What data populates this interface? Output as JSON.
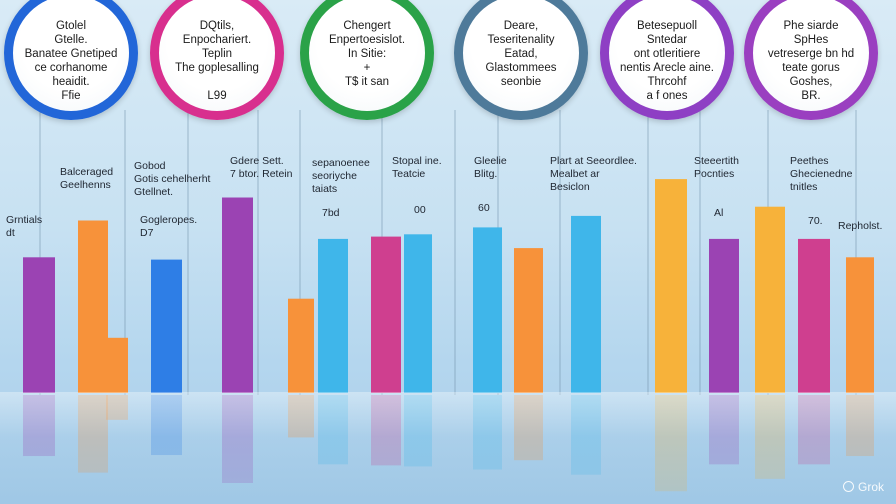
{
  "colors": {
    "purple": "#9b43b3",
    "orange": "#f7923a",
    "blue": "#2e7ee6",
    "magenta": "#cf3f8f",
    "sky": "#3fb6ea",
    "amber": "#f7b23a",
    "ring_blue": "#2266d8",
    "ring_magenta": "#d82f8e",
    "ring_green": "#2aa248",
    "ring_slate": "#4e7a9a",
    "ring_purple": "#8e3fc4",
    "ring_violet": "#9a3fc0"
  },
  "circles": [
    {
      "ring": "ring_blue",
      "lines": [
        "Gtolel",
        "Gtelle.",
        "Banatee Gnetiped",
        "ce corhanome",
        "heaidit.",
        "Ffie"
      ]
    },
    {
      "ring": "ring_magenta",
      "lines": [
        "DQtils,",
        "Enpochariert.",
        "Teplin",
        "The goplesalling",
        "",
        "L99"
      ]
    },
    {
      "ring": "ring_green",
      "lines": [
        "Chengert",
        "Enpertoesislot.",
        "In Sitie:",
        "+",
        "T$ it san"
      ]
    },
    {
      "ring": "ring_slate",
      "lines": [
        "Deare,",
        "Teseritenality",
        "Eatad,",
        "Glastommees",
        "seonbie"
      ]
    },
    {
      "ring": "ring_purple",
      "lines": [
        "Betesepuoll",
        "Sntedar",
        "ont otleritiere",
        "nentis Arecle aine.",
        "Thrcohf",
        "a f ones"
      ]
    },
    {
      "ring": "ring_violet",
      "lines": [
        "Phe siarde",
        "SpHes",
        "vetreserge bn hd",
        "teate gorus",
        "Goshes,",
        "BR."
      ]
    }
  ],
  "annotations": [
    {
      "lines": [
        "Balceraged",
        "Geelhenns"
      ]
    },
    {
      "lines": [
        "Grntials",
        "dt"
      ]
    },
    {
      "lines": [
        "Gobod",
        "Gotis cehelherht",
        "Gtellnet."
      ]
    },
    {
      "lines": [
        "Gogleropes.",
        "D7"
      ]
    },
    {
      "lines": [
        "Gdere Sett.",
        "7 btor. Retein"
      ]
    },
    {
      "lines": [
        "sepanoenee",
        "seoriyche",
        "taiats"
      ]
    },
    {
      "lines": [
        "7bd"
      ]
    },
    {
      "lines": [
        "Stopal ine.",
        "Teatcie"
      ]
    },
    {
      "lines": [
        "00"
      ]
    },
    {
      "lines": [
        "Gleelie",
        "Blitg."
      ]
    },
    {
      "lines": [
        "60"
      ]
    },
    {
      "lines": [
        "Plart at Seeordlee.",
        "Mealbet ar",
        "Besiclon"
      ]
    },
    {
      "lines": [
        "Steeertith",
        "Pocnties"
      ]
    },
    {
      "lines": [
        "Al"
      ]
    },
    {
      "lines": [
        "Peethes",
        "Ghecienedne",
        "tnitles"
      ]
    },
    {
      "lines": [
        "70."
      ]
    },
    {
      "lines": [
        "Repholst."
      ]
    }
  ],
  "chart_data": {
    "type": "bar",
    "title": "",
    "xlabel": "",
    "ylabel": "",
    "grid": false,
    "legend": "none",
    "bars": [
      {
        "value": 0.59,
        "color": "purple"
      },
      {
        "value": 0.75,
        "color": "orange"
      },
      {
        "value": 0.24,
        "color": "orange"
      },
      {
        "value": 0.58,
        "color": "blue"
      },
      {
        "value": 0.85,
        "color": "purple"
      },
      {
        "value": 0.41,
        "color": "orange"
      },
      {
        "value": 0.67,
        "color": "sky"
      },
      {
        "value": 0.68,
        "color": "magenta"
      },
      {
        "value": 0.69,
        "color": "sky"
      },
      {
        "value": 0.72,
        "color": "sky"
      },
      {
        "value": 0.63,
        "color": "orange"
      },
      {
        "value": 0.77,
        "color": "sky"
      },
      {
        "value": 0.93,
        "color": "amber"
      },
      {
        "value": 0.67,
        "color": "purple"
      },
      {
        "value": 0.81,
        "color": "amber"
      },
      {
        "value": 0.67,
        "color": "magenta"
      },
      {
        "value": 0.59,
        "color": "orange"
      }
    ]
  },
  "watermark": "Grok"
}
